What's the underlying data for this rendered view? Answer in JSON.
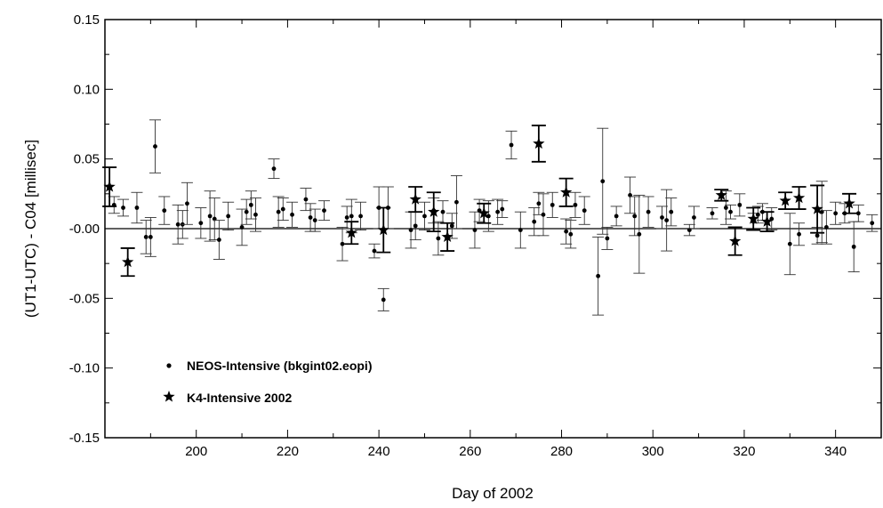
{
  "chart_data": {
    "type": "scatter",
    "xlabel": "Day of 2002",
    "ylabel": "(UT1-UTC) - C04 [millisec]",
    "xlim": [
      180,
      350
    ],
    "ylim": [
      -0.15,
      0.15
    ],
    "x_ticks": [
      200,
      220,
      240,
      260,
      280,
      300,
      320,
      340
    ],
    "x_tick_labels": [
      "200",
      "220",
      "240",
      "260",
      "280",
      "300",
      "320",
      "340"
    ],
    "y_ticks": [
      -0.15,
      -0.1,
      -0.05,
      0.0,
      0.05,
      0.1,
      0.15
    ],
    "y_tick_labels": [
      "-0.15",
      "-0.10",
      "-0.05",
      "-0.00",
      "0.05",
      "0.10",
      "0.15"
    ],
    "zero_line": true,
    "grid": false,
    "legend_position": "lower-left",
    "series": [
      {
        "name": "NEOS-Intensive (bkgint02.eopi)",
        "marker": "dot",
        "points": [
          {
            "x": 182,
            "y": 0.017,
            "err": 0.006
          },
          {
            "x": 184,
            "y": 0.015,
            "err": 0.006
          },
          {
            "x": 187,
            "y": 0.015,
            "err": 0.011
          },
          {
            "x": 189,
            "y": -0.006,
            "err": 0.012
          },
          {
            "x": 190,
            "y": -0.006,
            "err": 0.014
          },
          {
            "x": 191,
            "y": 0.059,
            "err": 0.019
          },
          {
            "x": 193,
            "y": 0.013,
            "err": 0.01
          },
          {
            "x": 196,
            "y": 0.003,
            "err": 0.014
          },
          {
            "x": 197,
            "y": 0.003,
            "err": 0.01
          },
          {
            "x": 198,
            "y": 0.018,
            "err": 0.015
          },
          {
            "x": 201,
            "y": 0.004,
            "err": 0.011
          },
          {
            "x": 203,
            "y": 0.009,
            "err": 0.018
          },
          {
            "x": 204,
            "y": 0.007,
            "err": 0.015
          },
          {
            "x": 205,
            "y": -0.008,
            "err": 0.014
          },
          {
            "x": 207,
            "y": 0.009,
            "err": 0.01
          },
          {
            "x": 210,
            "y": 0.001,
            "err": 0.013
          },
          {
            "x": 211,
            "y": 0.012,
            "err": 0.009
          },
          {
            "x": 212,
            "y": 0.017,
            "err": 0.01
          },
          {
            "x": 213,
            "y": 0.01,
            "err": 0.012
          },
          {
            "x": 217,
            "y": 0.043,
            "err": 0.007
          },
          {
            "x": 218,
            "y": 0.012,
            "err": 0.011
          },
          {
            "x": 219,
            "y": 0.014,
            "err": 0.008
          },
          {
            "x": 221,
            "y": 0.01,
            "err": 0.009
          },
          {
            "x": 224,
            "y": 0.021,
            "err": 0.008
          },
          {
            "x": 225,
            "y": 0.008,
            "err": 0.01
          },
          {
            "x": 226,
            "y": 0.006,
            "err": 0.008
          },
          {
            "x": 228,
            "y": 0.013,
            "err": 0.007
          },
          {
            "x": 232,
            "y": -0.011,
            "err": 0.012
          },
          {
            "x": 233,
            "y": 0.008,
            "err": 0.008
          },
          {
            "x": 234,
            "y": 0.009,
            "err": 0.012
          },
          {
            "x": 236,
            "y": 0.009,
            "err": 0.01
          },
          {
            "x": 239,
            "y": -0.016,
            "err": 0.005
          },
          {
            "x": 240,
            "y": 0.015,
            "err": 0.015
          },
          {
            "x": 241,
            "y": -0.051,
            "err": 0.008
          },
          {
            "x": 242,
            "y": 0.015,
            "err": 0.015
          },
          {
            "x": 247,
            "y": -0.001,
            "err": 0.013
          },
          {
            "x": 248,
            "y": 0.002,
            "err": 0.01
          },
          {
            "x": 250,
            "y": 0.009,
            "err": 0.01
          },
          {
            "x": 252,
            "y": 0.013,
            "err": 0.009
          },
          {
            "x": 253,
            "y": -0.007,
            "err": 0.012
          },
          {
            "x": 254,
            "y": 0.012,
            "err": 0.008
          },
          {
            "x": 256,
            "y": 0.002,
            "err": 0.009
          },
          {
            "x": 257,
            "y": 0.019,
            "err": 0.019
          },
          {
            "x": 261,
            "y": -0.001,
            "err": 0.013
          },
          {
            "x": 262,
            "y": 0.013,
            "err": 0.008
          },
          {
            "x": 264,
            "y": 0.009,
            "err": 0.011
          },
          {
            "x": 266,
            "y": 0.012,
            "err": 0.009
          },
          {
            "x": 267,
            "y": 0.014,
            "err": 0.006
          },
          {
            "x": 269,
            "y": 0.06,
            "err": 0.01
          },
          {
            "x": 271,
            "y": -0.001,
            "err": 0.013
          },
          {
            "x": 274,
            "y": 0.005,
            "err": 0.01
          },
          {
            "x": 275,
            "y": 0.018,
            "err": 0.008
          },
          {
            "x": 276,
            "y": 0.01,
            "err": 0.015
          },
          {
            "x": 278,
            "y": 0.017,
            "err": 0.009
          },
          {
            "x": 281,
            "y": -0.002,
            "err": 0.009
          },
          {
            "x": 282,
            "y": -0.004,
            "err": 0.01
          },
          {
            "x": 283,
            "y": 0.017,
            "err": 0.009
          },
          {
            "x": 285,
            "y": 0.013,
            "err": 0.01
          },
          {
            "x": 288,
            "y": -0.034,
            "err": 0.028
          },
          {
            "x": 289,
            "y": 0.034,
            "err": 0.038
          },
          {
            "x": 290,
            "y": -0.007,
            "err": 0.008
          },
          {
            "x": 292,
            "y": 0.009,
            "err": 0.007
          },
          {
            "x": 295,
            "y": 0.024,
            "err": 0.013
          },
          {
            "x": 296,
            "y": 0.009,
            "err": 0.014
          },
          {
            "x": 297,
            "y": -0.004,
            "err": 0.028
          },
          {
            "x": 299,
            "y": 0.012,
            "err": 0.011
          },
          {
            "x": 302,
            "y": 0.008,
            "err": 0.008
          },
          {
            "x": 303,
            "y": 0.006,
            "err": 0.022
          },
          {
            "x": 304,
            "y": 0.012,
            "err": 0.01
          },
          {
            "x": 308,
            "y": -0.001,
            "err": 0.004
          },
          {
            "x": 309,
            "y": 0.008,
            "err": 0.008
          },
          {
            "x": 313,
            "y": 0.011,
            "err": 0.004
          },
          {
            "x": 316,
            "y": 0.015,
            "err": 0.012
          },
          {
            "x": 317,
            "y": 0.012,
            "err": 0.005
          },
          {
            "x": 319,
            "y": 0.017,
            "err": 0.008
          },
          {
            "x": 322,
            "y": 0.005,
            "err": 0.006
          },
          {
            "x": 323,
            "y": 0.01,
            "err": 0.006
          },
          {
            "x": 324,
            "y": 0.012,
            "err": 0.006
          },
          {
            "x": 326,
            "y": 0.007,
            "err": 0.008
          },
          {
            "x": 330,
            "y": -0.011,
            "err": 0.022
          },
          {
            "x": 332,
            "y": -0.004,
            "err": 0.008
          },
          {
            "x": 336,
            "y": -0.005,
            "err": 0.006
          },
          {
            "x": 337,
            "y": 0.012,
            "err": 0.022
          },
          {
            "x": 338,
            "y": 0.001,
            "err": 0.012
          },
          {
            "x": 340,
            "y": 0.011,
            "err": 0.008
          },
          {
            "x": 342,
            "y": 0.011,
            "err": 0.007
          },
          {
            "x": 344,
            "y": -0.013,
            "err": 0.018
          },
          {
            "x": 345,
            "y": 0.011,
            "err": 0.006
          },
          {
            "x": 348,
            "y": 0.004,
            "err": 0.006
          }
        ]
      },
      {
        "name": "K4-Intensive 2002",
        "marker": "star",
        "points": [
          {
            "x": 181,
            "y": 0.03,
            "err": 0.014
          },
          {
            "x": 185,
            "y": -0.024,
            "err": 0.01
          },
          {
            "x": 234,
            "y": -0.003,
            "err": 0.008
          },
          {
            "x": 241,
            "y": -0.001,
            "err": 0.016
          },
          {
            "x": 248,
            "y": 0.021,
            "err": 0.009
          },
          {
            "x": 252,
            "y": 0.012,
            "err": 0.014
          },
          {
            "x": 255,
            "y": -0.006,
            "err": 0.01
          },
          {
            "x": 263,
            "y": 0.011,
            "err": 0.007
          },
          {
            "x": 275,
            "y": 0.061,
            "err": 0.013
          },
          {
            "x": 281,
            "y": 0.026,
            "err": 0.01
          },
          {
            "x": 315,
            "y": 0.024,
            "err": 0.004
          },
          {
            "x": 318,
            "y": -0.009,
            "err": 0.01
          },
          {
            "x": 322,
            "y": 0.007,
            "err": 0.008
          },
          {
            "x": 325,
            "y": 0.005,
            "err": 0.007
          },
          {
            "x": 329,
            "y": 0.02,
            "err": 0.006
          },
          {
            "x": 332,
            "y": 0.022,
            "err": 0.008
          },
          {
            "x": 336,
            "y": 0.014,
            "err": 0.017
          },
          {
            "x": 343,
            "y": 0.018,
            "err": 0.007
          }
        ]
      }
    ]
  }
}
